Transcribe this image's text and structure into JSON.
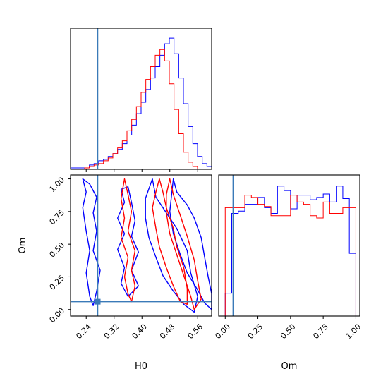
{
  "chart_data": [
    {
      "type": "step",
      "panel": "H0 marginal histogram",
      "xlabel": "",
      "xlim": [
        0.195,
        0.6
      ],
      "truth": 0.273,
      "bin_width": 0.0135,
      "series": [
        {
          "color": "#0000ff",
          "x": [
            0.195,
            0.2085,
            0.222,
            0.2355,
            0.249,
            0.2625,
            0.276,
            0.2895,
            0.303,
            0.3165,
            0.33,
            0.3435,
            0.357,
            0.3705,
            0.384,
            0.3975,
            0.411,
            0.4245,
            0.438,
            0.4515,
            0.465,
            0.4785,
            0.492,
            0.5055,
            0.519,
            0.5325,
            0.546,
            0.5595,
            0.573,
            0.5865
          ],
          "values": [
            1,
            1,
            1,
            1,
            3,
            4,
            6,
            7,
            9,
            11,
            14,
            18,
            24,
            31,
            39,
            47,
            56,
            64,
            72,
            80,
            88,
            92,
            81,
            64,
            46,
            30,
            18,
            9,
            4,
            2
          ]
        },
        {
          "color": "#ff0000",
          "x": [
            0.195,
            0.2085,
            0.222,
            0.2355,
            0.249,
            0.2625,
            0.276,
            0.2895,
            0.303,
            0.3165,
            0.33,
            0.3435,
            0.357,
            0.3705,
            0.384,
            0.3975,
            0.411,
            0.4245,
            0.438,
            0.4515,
            0.465,
            0.4785,
            0.492,
            0.5055,
            0.519,
            0.5325,
            0.546,
            0.5595,
            0.573,
            0.5865
          ],
          "values": [
            0,
            0,
            0,
            1,
            2,
            3,
            4,
            6,
            8,
            11,
            15,
            20,
            27,
            35,
            44,
            54,
            63,
            72,
            80,
            84,
            76,
            60,
            42,
            25,
            12,
            5,
            2,
            0,
            0,
            0
          ]
        }
      ]
    },
    {
      "type": "contour",
      "panel": "H0 vs Om joint posterior",
      "xlabel": "H0",
      "ylabel": "Om",
      "xlim": [
        0.195,
        0.6
      ],
      "ylim": [
        -0.05,
        1.03
      ],
      "xticks": [
        "0.24",
        "0.32",
        "0.40",
        "0.48",
        "0.56"
      ],
      "yticks": [
        "0.00",
        "0.25",
        "0.50",
        "0.75",
        "1.00"
      ],
      "truth": {
        "x": 0.273,
        "y": 0.06
      },
      "series": [
        {
          "name": "",
          "color": "#0000ff",
          "contours": [
            [
              [
                0.23,
                1.0
              ],
              [
                0.25,
                0.96
              ],
              [
                0.27,
                0.86
              ],
              [
                0.26,
                0.74
              ],
              [
                0.27,
                0.6
              ],
              [
                0.26,
                0.45
              ],
              [
                0.28,
                0.3
              ],
              [
                0.27,
                0.14
              ],
              [
                0.26,
                0.03
              ],
              [
                0.25,
                0.1
              ],
              [
                0.24,
                0.28
              ],
              [
                0.25,
                0.45
              ],
              [
                0.24,
                0.6
              ],
              [
                0.23,
                0.78
              ],
              [
                0.24,
                0.9
              ],
              [
                0.23,
                1.0
              ]
            ],
            [
              [
                0.36,
                0.94
              ],
              [
                0.37,
                0.82
              ],
              [
                0.38,
                0.68
              ],
              [
                0.37,
                0.56
              ],
              [
                0.39,
                0.44
              ],
              [
                0.37,
                0.3
              ],
              [
                0.39,
                0.18
              ],
              [
                0.36,
                0.1
              ],
              [
                0.34,
                0.2
              ],
              [
                0.35,
                0.32
              ],
              [
                0.33,
                0.46
              ],
              [
                0.35,
                0.58
              ],
              [
                0.33,
                0.7
              ],
              [
                0.35,
                0.82
              ],
              [
                0.34,
                0.92
              ],
              [
                0.36,
                0.94
              ]
            ],
            [
              [
                0.43,
                1.0
              ],
              [
                0.44,
                0.86
              ],
              [
                0.47,
                0.74
              ],
              [
                0.5,
                0.62
              ],
              [
                0.53,
                0.45
              ],
              [
                0.54,
                0.28
              ],
              [
                0.56,
                0.1
              ],
              [
                0.55,
                -0.02
              ],
              [
                0.52,
                0.04
              ],
              [
                0.49,
                0.14
              ],
              [
                0.46,
                0.26
              ],
              [
                0.44,
                0.4
              ],
              [
                0.42,
                0.55
              ],
              [
                0.41,
                0.7
              ],
              [
                0.41,
                0.85
              ],
              [
                0.43,
                1.0
              ]
            ],
            [
              [
                0.49,
                1.0
              ],
              [
                0.5,
                0.9
              ],
              [
                0.53,
                0.8
              ],
              [
                0.55,
                0.7
              ],
              [
                0.57,
                0.55
              ],
              [
                0.58,
                0.4
              ],
              [
                0.59,
                0.25
              ],
              [
                0.6,
                0.12
              ],
              [
                0.6,
                0.0
              ],
              [
                0.58,
                0.05
              ],
              [
                0.56,
                0.15
              ],
              [
                0.53,
                0.28
              ],
              [
                0.51,
                0.42
              ],
              [
                0.49,
                0.58
              ],
              [
                0.48,
                0.75
              ],
              [
                0.49,
                1.0
              ]
            ]
          ]
        },
        {
          "name": "",
          "color": "#ff0000",
          "contours": [
            [
              [
                0.35,
                1.0
              ],
              [
                0.36,
                0.88
              ],
              [
                0.37,
                0.75
              ],
              [
                0.36,
                0.6
              ],
              [
                0.38,
                0.45
              ],
              [
                0.37,
                0.3
              ],
              [
                0.38,
                0.18
              ],
              [
                0.37,
                0.06
              ],
              [
                0.36,
                0.12
              ],
              [
                0.35,
                0.25
              ],
              [
                0.36,
                0.4
              ],
              [
                0.34,
                0.55
              ],
              [
                0.35,
                0.7
              ],
              [
                0.34,
                0.85
              ],
              [
                0.35,
                1.0
              ]
            ],
            [
              [
                0.45,
                1.0
              ],
              [
                0.46,
                0.9
              ],
              [
                0.47,
                0.78
              ],
              [
                0.49,
                0.62
              ],
              [
                0.5,
                0.48
              ],
              [
                0.52,
                0.32
              ],
              [
                0.53,
                0.16
              ],
              [
                0.53,
                0.04
              ],
              [
                0.51,
                0.06
              ],
              [
                0.49,
                0.18
              ],
              [
                0.47,
                0.32
              ],
              [
                0.45,
                0.48
              ],
              [
                0.44,
                0.62
              ],
              [
                0.43,
                0.78
              ],
              [
                0.44,
                0.9
              ],
              [
                0.45,
                1.0
              ]
            ],
            [
              [
                0.48,
                1.0
              ],
              [
                0.49,
                0.88
              ],
              [
                0.51,
                0.72
              ],
              [
                0.53,
                0.56
              ],
              [
                0.55,
                0.38
              ],
              [
                0.56,
                0.22
              ],
              [
                0.57,
                0.08
              ],
              [
                0.55,
                0.0
              ],
              [
                0.54,
                0.1
              ],
              [
                0.52,
                0.26
              ],
              [
                0.5,
                0.42
              ],
              [
                0.48,
                0.58
              ],
              [
                0.47,
                0.74
              ],
              [
                0.47,
                0.88
              ],
              [
                0.48,
                1.0
              ]
            ]
          ]
        }
      ]
    },
    {
      "type": "step",
      "panel": "Om marginal histogram",
      "xlabel": "Om",
      "xlim": [
        -0.05,
        1.03
      ],
      "xticks": [
        "0.00",
        "0.25",
        "0.50",
        "0.75",
        "1.00"
      ],
      "truth": 0.06,
      "bin_width": 0.05,
      "series": [
        {
          "color": "#0000ff",
          "x": [
            0.0,
            0.05,
            0.1,
            0.15,
            0.2,
            0.25,
            0.3,
            0.35,
            0.4,
            0.45,
            0.5,
            0.55,
            0.6,
            0.65,
            0.7,
            0.75,
            0.8,
            0.85,
            0.9,
            0.95,
            1.0
          ],
          "values": [
            0.2,
            0.9,
            0.92,
            0.98,
            0.98,
            1.04,
            0.95,
            0.9,
            1.14,
            1.1,
            0.94,
            1.06,
            1.06,
            1.02,
            1.04,
            1.07,
            1.0,
            1.14,
            1.03,
            0.55,
            0.55
          ]
        },
        {
          "color": "#ff0000",
          "x": [
            0.0,
            0.05,
            0.1,
            0.15,
            0.2,
            0.25,
            0.3,
            0.35,
            0.4,
            0.45,
            0.5,
            0.55,
            0.6,
            0.65,
            0.7,
            0.75,
            0.8,
            0.85,
            0.9,
            0.95,
            1.0
          ],
          "values": [
            0.95,
            0.95,
            0.95,
            1.06,
            1.04,
            0.98,
            0.96,
            0.88,
            0.88,
            0.88,
            1.06,
            1.0,
            0.98,
            0.88,
            0.86,
            1.0,
            0.9,
            0.9,
            0.95,
            0.95,
            0.95
          ]
        }
      ]
    }
  ]
}
